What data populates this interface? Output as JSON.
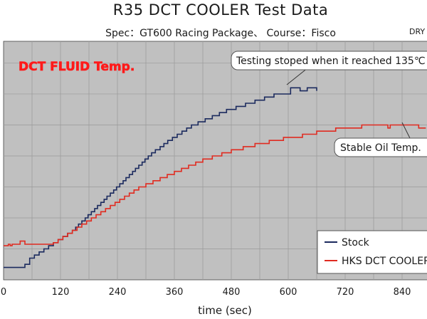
{
  "header": {
    "title": "R35 DCT COOLER  Test Data",
    "subtitle": "Spec：GT600 Racing Package、 Course：Fisco",
    "corner_text": "DRY"
  },
  "chart_data": {
    "type": "line",
    "in_plot_label": "DCT FLUID Temp.",
    "xlabel": "time (sec)",
    "ylabel": "",
    "xlim": [
      0,
      900
    ],
    "ylim": [
      0,
      7.7
    ],
    "x_ticks": [
      0,
      120,
      240,
      360,
      480,
      600,
      720,
      840
    ],
    "x_tick_labels": [
      "0",
      "120",
      "240",
      "360",
      "480",
      "600",
      "720",
      "840"
    ],
    "y_tick_labels": [],
    "grid": true,
    "legend_position": "bottom-right",
    "annotations": [
      {
        "text": "Testing stoped when it reached 135℃"
      },
      {
        "text": "Stable Oil Temp."
      }
    ],
    "series": [
      {
        "name": "Stock",
        "color": "#1b2a5e",
        "points": [
          [
            0,
            0.4
          ],
          [
            45,
            0.4
          ],
          [
            45,
            0.5
          ],
          [
            55,
            0.5
          ],
          [
            55,
            0.7
          ],
          [
            65,
            0.7
          ],
          [
            65,
            0.8
          ],
          [
            75,
            0.8
          ],
          [
            75,
            0.9
          ],
          [
            85,
            0.9
          ],
          [
            85,
            1.0
          ],
          [
            95,
            1.0
          ],
          [
            95,
            1.1
          ],
          [
            105,
            1.1
          ],
          [
            105,
            1.2
          ],
          [
            115,
            1.2
          ],
          [
            115,
            1.3
          ],
          [
            125,
            1.3
          ],
          [
            125,
            1.4
          ],
          [
            135,
            1.4
          ],
          [
            135,
            1.5
          ],
          [
            145,
            1.5
          ],
          [
            145,
            1.6
          ],
          [
            152,
            1.6
          ],
          [
            152,
            1.7
          ],
          [
            158,
            1.7
          ],
          [
            158,
            1.8
          ],
          [
            165,
            1.8
          ],
          [
            165,
            1.9
          ],
          [
            172,
            1.9
          ],
          [
            172,
            2.0
          ],
          [
            178,
            2.0
          ],
          [
            178,
            2.1
          ],
          [
            185,
            2.1
          ],
          [
            185,
            2.2
          ],
          [
            192,
            2.2
          ],
          [
            192,
            2.3
          ],
          [
            198,
            2.3
          ],
          [
            198,
            2.4
          ],
          [
            205,
            2.4
          ],
          [
            205,
            2.5
          ],
          [
            212,
            2.5
          ],
          [
            212,
            2.6
          ],
          [
            218,
            2.6
          ],
          [
            218,
            2.7
          ],
          [
            225,
            2.7
          ],
          [
            225,
            2.8
          ],
          [
            232,
            2.8
          ],
          [
            232,
            2.9
          ],
          [
            238,
            2.9
          ],
          [
            238,
            3.0
          ],
          [
            245,
            3.0
          ],
          [
            245,
            3.1
          ],
          [
            252,
            3.1
          ],
          [
            252,
            3.2
          ],
          [
            258,
            3.2
          ],
          [
            258,
            3.3
          ],
          [
            265,
            3.3
          ],
          [
            265,
            3.4
          ],
          [
            272,
            3.4
          ],
          [
            272,
            3.5
          ],
          [
            278,
            3.5
          ],
          [
            278,
            3.6
          ],
          [
            285,
            3.6
          ],
          [
            285,
            3.7
          ],
          [
            292,
            3.7
          ],
          [
            292,
            3.8
          ],
          [
            298,
            3.8
          ],
          [
            298,
            3.9
          ],
          [
            305,
            3.9
          ],
          [
            305,
            4.0
          ],
          [
            312,
            4.0
          ],
          [
            312,
            4.1
          ],
          [
            320,
            4.1
          ],
          [
            320,
            4.2
          ],
          [
            330,
            4.2
          ],
          [
            330,
            4.3
          ],
          [
            338,
            4.3
          ],
          [
            338,
            4.4
          ],
          [
            346,
            4.4
          ],
          [
            346,
            4.5
          ],
          [
            356,
            4.5
          ],
          [
            356,
            4.6
          ],
          [
            366,
            4.6
          ],
          [
            366,
            4.7
          ],
          [
            376,
            4.7
          ],
          [
            376,
            4.8
          ],
          [
            386,
            4.8
          ],
          [
            386,
            4.9
          ],
          [
            396,
            4.9
          ],
          [
            396,
            5.0
          ],
          [
            410,
            5.0
          ],
          [
            410,
            5.1
          ],
          [
            425,
            5.1
          ],
          [
            425,
            5.2
          ],
          [
            440,
            5.2
          ],
          [
            440,
            5.3
          ],
          [
            455,
            5.3
          ],
          [
            455,
            5.4
          ],
          [
            470,
            5.4
          ],
          [
            470,
            5.5
          ],
          [
            490,
            5.5
          ],
          [
            490,
            5.6
          ],
          [
            510,
            5.6
          ],
          [
            510,
            5.7
          ],
          [
            530,
            5.7
          ],
          [
            530,
            5.8
          ],
          [
            550,
            5.8
          ],
          [
            550,
            5.9
          ],
          [
            570,
            5.9
          ],
          [
            570,
            6.0
          ],
          [
            605,
            6.0
          ],
          [
            605,
            6.2
          ],
          [
            625,
            6.2
          ],
          [
            625,
            6.1
          ],
          [
            640,
            6.1
          ],
          [
            640,
            6.2
          ],
          [
            660,
            6.2
          ],
          [
            660,
            6.1
          ]
        ]
      },
      {
        "name": "HKS DCT COOLER",
        "color": "#e02b20",
        "points": [
          [
            0,
            1.1
          ],
          [
            10,
            1.1
          ],
          [
            10,
            1.15
          ],
          [
            14,
            1.15
          ],
          [
            14,
            1.1
          ],
          [
            18,
            1.1
          ],
          [
            18,
            1.15
          ],
          [
            35,
            1.15
          ],
          [
            35,
            1.25
          ],
          [
            45,
            1.25
          ],
          [
            45,
            1.15
          ],
          [
            105,
            1.15
          ],
          [
            105,
            1.2
          ],
          [
            115,
            1.2
          ],
          [
            115,
            1.3
          ],
          [
            125,
            1.3
          ],
          [
            125,
            1.4
          ],
          [
            135,
            1.4
          ],
          [
            135,
            1.5
          ],
          [
            145,
            1.5
          ],
          [
            145,
            1.6
          ],
          [
            155,
            1.6
          ],
          [
            155,
            1.7
          ],
          [
            165,
            1.7
          ],
          [
            165,
            1.8
          ],
          [
            175,
            1.8
          ],
          [
            175,
            1.9
          ],
          [
            185,
            1.9
          ],
          [
            185,
            2.0
          ],
          [
            195,
            2.0
          ],
          [
            195,
            2.1
          ],
          [
            205,
            2.1
          ],
          [
            205,
            2.2
          ],
          [
            215,
            2.2
          ],
          [
            215,
            2.3
          ],
          [
            225,
            2.3
          ],
          [
            225,
            2.4
          ],
          [
            235,
            2.4
          ],
          [
            235,
            2.5
          ],
          [
            245,
            2.5
          ],
          [
            245,
            2.6
          ],
          [
            255,
            2.6
          ],
          [
            255,
            2.7
          ],
          [
            265,
            2.7
          ],
          [
            265,
            2.8
          ],
          [
            275,
            2.8
          ],
          [
            275,
            2.9
          ],
          [
            285,
            2.9
          ],
          [
            285,
            3.0
          ],
          [
            300,
            3.0
          ],
          [
            300,
            3.1
          ],
          [
            315,
            3.1
          ],
          [
            315,
            3.2
          ],
          [
            330,
            3.2
          ],
          [
            330,
            3.3
          ],
          [
            345,
            3.3
          ],
          [
            345,
            3.4
          ],
          [
            360,
            3.4
          ],
          [
            360,
            3.5
          ],
          [
            375,
            3.5
          ],
          [
            375,
            3.6
          ],
          [
            390,
            3.6
          ],
          [
            390,
            3.7
          ],
          [
            405,
            3.7
          ],
          [
            405,
            3.8
          ],
          [
            420,
            3.8
          ],
          [
            420,
            3.9
          ],
          [
            440,
            3.9
          ],
          [
            440,
            4.0
          ],
          [
            460,
            4.0
          ],
          [
            460,
            4.1
          ],
          [
            480,
            4.1
          ],
          [
            480,
            4.2
          ],
          [
            505,
            4.2
          ],
          [
            505,
            4.3
          ],
          [
            530,
            4.3
          ],
          [
            530,
            4.4
          ],
          [
            560,
            4.4
          ],
          [
            560,
            4.5
          ],
          [
            590,
            4.5
          ],
          [
            590,
            4.6
          ],
          [
            630,
            4.6
          ],
          [
            630,
            4.7
          ],
          [
            660,
            4.7
          ],
          [
            660,
            4.8
          ],
          [
            700,
            4.8
          ],
          [
            700,
            4.9
          ],
          [
            755,
            4.9
          ],
          [
            755,
            5.0
          ],
          [
            810,
            5.0
          ],
          [
            810,
            4.9
          ],
          [
            815,
            4.9
          ],
          [
            815,
            5.0
          ],
          [
            875,
            5.0
          ],
          [
            875,
            4.9
          ],
          [
            890,
            4.9
          ]
        ]
      }
    ]
  }
}
